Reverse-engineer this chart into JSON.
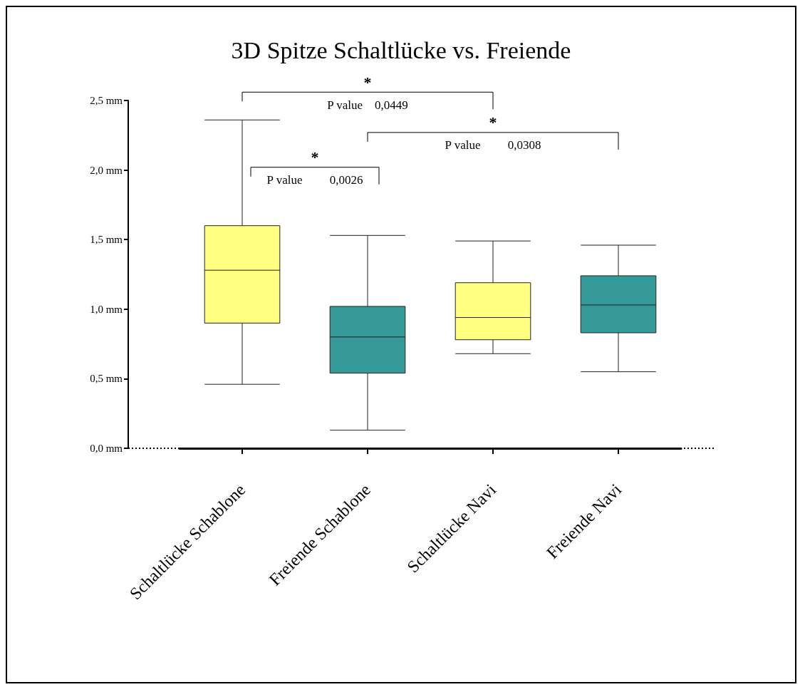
{
  "chart_data": {
    "type": "box",
    "title": "3D Spitze Schaltlücke vs. Freiende",
    "categories": [
      "Schaltlücke Schablone",
      "Freiende Schablone",
      "Schaltlücke Navi",
      "Freiende Navi"
    ],
    "boxes": [
      {
        "low": 0.46,
        "q1": 0.9,
        "median": 1.28,
        "q3": 1.6,
        "high": 2.36
      },
      {
        "low": 0.13,
        "q1": 0.54,
        "median": 0.8,
        "q3": 1.02,
        "high": 1.53
      },
      {
        "low": 0.68,
        "q1": 0.78,
        "median": 0.94,
        "q3": 1.19,
        "high": 1.49
      },
      {
        "low": 0.55,
        "q1": 0.83,
        "median": 1.03,
        "q3": 1.24,
        "high": 1.46
      }
    ],
    "colors": [
      "#ffff80",
      "#339999",
      "#ffff80",
      "#339999"
    ],
    "ylim": [
      0,
      2.5
    ],
    "yticks": [
      {
        "value": 0,
        "label": "0,0 mm"
      },
      {
        "value": 0.5,
        "label": "0,5 mm"
      },
      {
        "value": 1,
        "label": "1,0 mm"
      },
      {
        "value": 1.5,
        "label": "1,5 mm"
      },
      {
        "value": 2,
        "label": "2,0 mm"
      },
      {
        "value": 2.5,
        "label": "2,5 mm"
      }
    ],
    "ref_lines": [
      {
        "axis": "y",
        "value": 0,
        "line_style": "dotted",
        "color": "#000000"
      }
    ],
    "annotations": [
      "*",
      "P value    0,0449",
      "*",
      "P value         0,0308",
      "*",
      "P value         0,0026"
    ],
    "grid": false
  }
}
